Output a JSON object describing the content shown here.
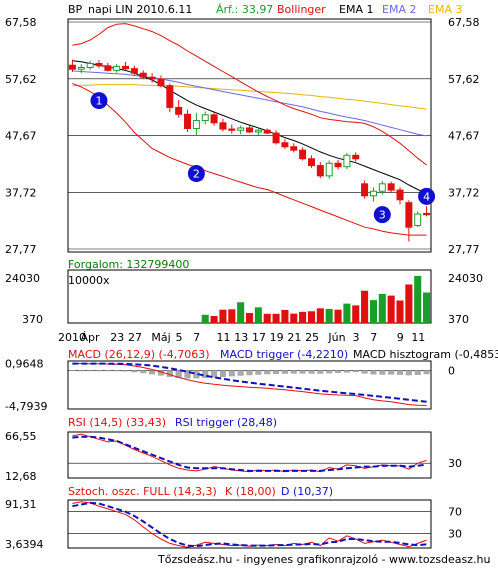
{
  "header": {
    "ticker": "BP",
    "period": "napi LIN 2010.6.11",
    "price": "Árf.: 33,97",
    "bollinger": "Bollinger",
    "ema1": "EMA 1",
    "ema2": "EMA 2",
    "ema3": "EMA 3"
  },
  "colors": {
    "up": "#1a9e2a",
    "down": "#e01010",
    "bollinger": "#e01010",
    "ema1": "#000000",
    "ema2": "#6a6ae0",
    "ema3": "#e8b400",
    "macd": "#e01010",
    "trigger": "#1010c0",
    "hist": "#aaaaaa",
    "marker": "#1010d0",
    "green_text": "#0a7a0a",
    "blue_text": "#1010c0"
  },
  "chart_data": [
    {
      "type": "candlestick",
      "panel": "price",
      "ylim": [
        27.77,
        67.58
      ],
      "yticks": [
        "67,58",
        "57,62",
        "47,67",
        "37,72",
        "27,77"
      ],
      "ohlc": [
        [
          60.0,
          61.0,
          58.8,
          59.3
        ],
        [
          59.3,
          60.2,
          58.6,
          59.6
        ],
        [
          59.6,
          60.8,
          59.2,
          60.3
        ],
        [
          60.3,
          60.9,
          59.5,
          59.9
        ],
        [
          59.9,
          60.4,
          58.9,
          59.1
        ],
        [
          59.1,
          60.2,
          58.7,
          59.8
        ],
        [
          59.8,
          60.6,
          59.1,
          59.4
        ],
        [
          59.4,
          59.9,
          58.2,
          58.6
        ],
        [
          58.6,
          59.1,
          57.6,
          57.9
        ],
        [
          57.9,
          58.6,
          56.9,
          57.6
        ],
        [
          57.6,
          58.2,
          56.1,
          56.4
        ],
        [
          56.4,
          56.8,
          51.8,
          52.6
        ],
        [
          52.6,
          53.9,
          50.8,
          51.4
        ],
        [
          51.4,
          52.2,
          48.3,
          48.9
        ],
        [
          48.9,
          51.6,
          47.6,
          50.3
        ],
        [
          50.3,
          51.9,
          49.6,
          51.3
        ],
        [
          51.3,
          51.7,
          49.4,
          49.9
        ],
        [
          49.9,
          50.6,
          48.4,
          48.8
        ],
        [
          48.8,
          49.6,
          48.0,
          48.6
        ],
        [
          48.6,
          49.4,
          47.9,
          49.0
        ],
        [
          49.0,
          49.5,
          48.1,
          48.3
        ],
        [
          48.3,
          49.1,
          47.7,
          48.6
        ],
        [
          48.6,
          48.9,
          47.9,
          48.1
        ],
        [
          48.1,
          48.6,
          46.1,
          46.4
        ],
        [
          46.4,
          47.0,
          45.3,
          45.7
        ],
        [
          45.7,
          46.3,
          44.7,
          45.1
        ],
        [
          45.1,
          45.6,
          43.3,
          43.6
        ],
        [
          43.6,
          44.2,
          42.0,
          42.4
        ],
        [
          42.4,
          43.0,
          40.2,
          40.6
        ],
        [
          40.6,
          43.3,
          40.1,
          42.8
        ],
        [
          42.8,
          43.4,
          41.7,
          42.2
        ],
        [
          42.2,
          44.6,
          41.8,
          44.2
        ],
        [
          44.2,
          44.7,
          43.1,
          43.6
        ],
        [
          39.2,
          39.8,
          36.6,
          37.1
        ],
        [
          37.1,
          38.6,
          36.1,
          37.9
        ],
        [
          37.9,
          39.7,
          37.3,
          39.2
        ],
        [
          39.2,
          39.6,
          37.6,
          38.1
        ],
        [
          38.1,
          38.6,
          35.6,
          36.4
        ],
        [
          35.9,
          36.3,
          29.1,
          31.6
        ],
        [
          31.9,
          34.4,
          31.6,
          33.9
        ],
        [
          34.0,
          35.3,
          33.5,
          33.97
        ]
      ],
      "bollinger_upper": [
        63.5,
        63.8,
        64.4,
        65.4,
        66.6,
        67.2,
        67.3,
        66.9,
        66.4,
        65.9,
        65.2,
        64.3,
        63.5,
        62.5,
        61.6,
        60.7,
        59.8,
        58.9,
        58.0,
        57.1,
        56.2,
        55.3,
        54.5,
        53.8,
        53.0,
        52.4,
        51.9,
        51.4,
        50.8,
        50.5,
        50.3,
        50.1,
        50.0,
        49.8,
        49.2,
        48.4,
        47.4,
        46.3,
        45.0,
        43.7,
        42.5
      ],
      "bollinger_lower": [
        56.8,
        56.2,
        55.4,
        54.4,
        53.0,
        51.6,
        50.0,
        48.2,
        46.8,
        45.4,
        44.6,
        43.8,
        43.2,
        42.6,
        42.1,
        41.5,
        41.0,
        40.5,
        40.0,
        39.5,
        39.0,
        38.5,
        38.2,
        37.6,
        37.0,
        36.4,
        35.8,
        35.2,
        34.6,
        34.0,
        33.4,
        32.8,
        32.2,
        31.6,
        31.3,
        30.9,
        30.6,
        30.4,
        30.2,
        30.2,
        30.2
      ],
      "ema1": [
        60.8,
        60.6,
        60.3,
        60.0,
        59.7,
        59.4,
        59.1,
        58.6,
        58.0,
        57.4,
        56.6,
        55.6,
        54.7,
        53.8,
        53.0,
        52.4,
        51.8,
        51.2,
        50.6,
        50.0,
        49.5,
        49.0,
        48.5,
        47.9,
        47.3,
        46.8,
        46.2,
        45.5,
        44.8,
        44.2,
        43.7,
        43.3,
        42.9,
        42.3,
        41.7,
        41.1,
        40.5,
        39.9,
        39.0,
        38.2,
        37.5
      ],
      "ema2": [
        59.0,
        58.9,
        58.8,
        58.7,
        58.6,
        58.5,
        58.4,
        58.2,
        58.0,
        57.8,
        57.6,
        57.3,
        57.0,
        56.6,
        56.3,
        56.0,
        55.7,
        55.4,
        55.1,
        54.8,
        54.5,
        54.2,
        53.9,
        53.6,
        53.3,
        53.0,
        52.7,
        52.3,
        51.9,
        51.6,
        51.2,
        50.9,
        50.6,
        50.3,
        49.9,
        49.5,
        49.1,
        48.7,
        48.3,
        47.9,
        47.6
      ],
      "ema3": [
        56.4,
        56.5,
        56.5,
        56.6,
        56.6,
        56.6,
        56.6,
        56.6,
        56.5,
        56.5,
        56.4,
        56.4,
        56.3,
        56.2,
        56.1,
        56.0,
        55.9,
        55.8,
        55.7,
        55.6,
        55.5,
        55.4,
        55.3,
        55.2,
        55.1,
        55.0,
        54.8,
        54.7,
        54.5,
        54.4,
        54.2,
        54.0,
        53.9,
        53.7,
        53.5,
        53.3,
        53.1,
        52.9,
        52.7,
        52.5,
        52.3
      ],
      "markers": [
        {
          "label": "1",
          "index": 3,
          "y": 53.8
        },
        {
          "label": "2",
          "index": 14,
          "y": 41.0
        },
        {
          "label": "3",
          "index": 35,
          "y": 33.8
        },
        {
          "label": "4",
          "index": 40,
          "y": 37.0
        }
      ]
    },
    {
      "type": "bar",
      "panel": "volume",
      "title": "Forgalom: 132799400",
      "unit": "10000x",
      "ylim": [
        0,
        24030
      ],
      "yticks": [
        "24030",
        "370"
      ],
      "values": [
        0,
        0,
        0,
        0,
        0,
        0,
        0,
        0,
        0,
        0,
        0,
        0,
        0,
        0,
        0,
        4200,
        3600,
        6800,
        7000,
        10600,
        5100,
        8000,
        4700,
        4700,
        6700,
        4800,
        5700,
        6000,
        7500,
        7200,
        6800,
        9900,
        9000,
        16500,
        11700,
        14900,
        14000,
        11500,
        19700,
        24030,
        15600
      ],
      "up_flags": [
        true,
        true,
        true,
        true,
        true,
        true,
        true,
        true,
        true,
        true,
        true,
        false,
        false,
        false,
        true,
        true,
        false,
        false,
        false,
        true,
        false,
        true,
        false,
        false,
        false,
        false,
        false,
        false,
        false,
        true,
        false,
        true,
        false,
        false,
        true,
        true,
        false,
        false,
        false,
        true,
        true
      ]
    },
    {
      "type": "line",
      "panel": "macd",
      "title": "MACD (26,12,9) (-4,7063)",
      "trigger_label": "MACD trigger (-4,2210)",
      "hist_label": "MACD hisztogram (-0,4853)",
      "ylim": [
        -5.2,
        1.3
      ],
      "yticks_left": [
        "0,9648",
        "-4,7939"
      ],
      "ytick_right": "0",
      "macd": [
        0.96,
        0.95,
        0.94,
        0.92,
        0.9,
        0.85,
        0.78,
        0.62,
        0.42,
        0.15,
        -0.18,
        -0.55,
        -0.92,
        -1.25,
        -1.5,
        -1.7,
        -1.85,
        -1.98,
        -2.08,
        -2.17,
        -2.25,
        -2.33,
        -2.4,
        -2.5,
        -2.6,
        -2.72,
        -2.85,
        -3.0,
        -3.15,
        -3.23,
        -3.3,
        -3.35,
        -3.38,
        -3.7,
        -3.95,
        -4.1,
        -4.22,
        -4.4,
        -4.6,
        -4.68,
        -4.71
      ],
      "trigger": [
        0.95,
        0.95,
        0.95,
        0.95,
        0.94,
        0.93,
        0.9,
        0.85,
        0.78,
        0.66,
        0.5,
        0.31,
        0.09,
        -0.18,
        -0.44,
        -0.69,
        -0.91,
        -1.11,
        -1.3,
        -1.47,
        -1.62,
        -1.77,
        -1.9,
        -2.04,
        -2.17,
        -2.3,
        -2.44,
        -2.58,
        -2.72,
        -2.85,
        -2.97,
        -3.08,
        -3.18,
        -3.29,
        -3.42,
        -3.55,
        -3.68,
        -3.82,
        -3.96,
        -4.09,
        -4.22
      ],
      "histogram": [
        0.01,
        0.0,
        -0.01,
        -0.03,
        -0.04,
        -0.08,
        -0.12,
        -0.23,
        -0.36,
        -0.51,
        -0.68,
        -0.86,
        -1.01,
        -1.07,
        -1.06,
        -1.01,
        -0.94,
        -0.87,
        -0.78,
        -0.7,
        -0.63,
        -0.56,
        -0.5,
        -0.46,
        -0.43,
        -0.42,
        -0.41,
        -0.42,
        -0.43,
        -0.38,
        -0.33,
        -0.27,
        -0.2,
        -0.41,
        -0.53,
        -0.55,
        -0.54,
        -0.58,
        -0.64,
        -0.59,
        -0.49
      ]
    },
    {
      "type": "line",
      "panel": "rsi",
      "title": "RSI (14,5) (33,43)",
      "trigger_label": "RSI trigger (28,48)",
      "ylim": [
        12.68,
        66.55
      ],
      "yticks_left": [
        "66,55",
        "12,68"
      ],
      "ytick_right": "30",
      "rsi": [
        62,
        64,
        61,
        58,
        55,
        56,
        51,
        46,
        42,
        38,
        33,
        28,
        24,
        22,
        21,
        23,
        26,
        24,
        22,
        21,
        20,
        22,
        21,
        22,
        20,
        22,
        21,
        22,
        20,
        25,
        23,
        28,
        27,
        24,
        26,
        28,
        27,
        27,
        23,
        30,
        33.43
      ],
      "trigger": [
        60,
        61,
        61,
        60,
        58,
        56,
        52,
        48,
        44,
        40,
        36,
        32,
        28,
        25,
        24,
        24,
        24,
        24,
        23,
        22,
        21,
        21,
        21,
        21,
        21,
        21,
        21,
        21,
        21,
        22,
        23,
        24,
        25,
        26,
        26,
        27,
        27,
        27,
        26,
        27,
        28.48
      ]
    },
    {
      "type": "line",
      "panel": "stochastic",
      "title": "Sztoch. oszc. FULL (14,3,3)",
      "k_label": "K (18,00)",
      "d_label": "D (10,37)",
      "ylim": [
        3.6394,
        91.31
      ],
      "yticks_left": [
        "91,31",
        "3,6394"
      ],
      "yticks_right": [
        "70",
        "30"
      ],
      "k": [
        85,
        88,
        86,
        80,
        75,
        70,
        65,
        55,
        42,
        30,
        20,
        12,
        8,
        5,
        9,
        14,
        12,
        10,
        8,
        9,
        7,
        9,
        8,
        10,
        8,
        12,
        10,
        14,
        8,
        22,
        16,
        26,
        20,
        12,
        15,
        18,
        14,
        10,
        6,
        12,
        18
      ],
      "d": [
        80,
        83,
        86,
        85,
        80,
        75,
        70,
        62,
        52,
        41,
        30,
        20,
        13,
        8,
        7,
        9,
        11,
        12,
        10,
        9,
        8,
        8,
        8,
        9,
        9,
        10,
        10,
        11,
        10,
        14,
        15,
        20,
        20,
        18,
        16,
        15,
        15,
        13,
        10,
        9,
        10.37
      ]
    }
  ],
  "x_axis": {
    "labels": [
      "2010",
      "Ápr",
      "23",
      "27",
      "Máj",
      "5",
      "7",
      "11",
      "13",
      "17",
      "19",
      "21",
      "25",
      "Jún",
      "3",
      "7",
      "9",
      "11"
    ]
  },
  "footer": "Tőzsdeász.hu - ingyenes grafikonrajzoló - www.tozsdeasz.hu"
}
